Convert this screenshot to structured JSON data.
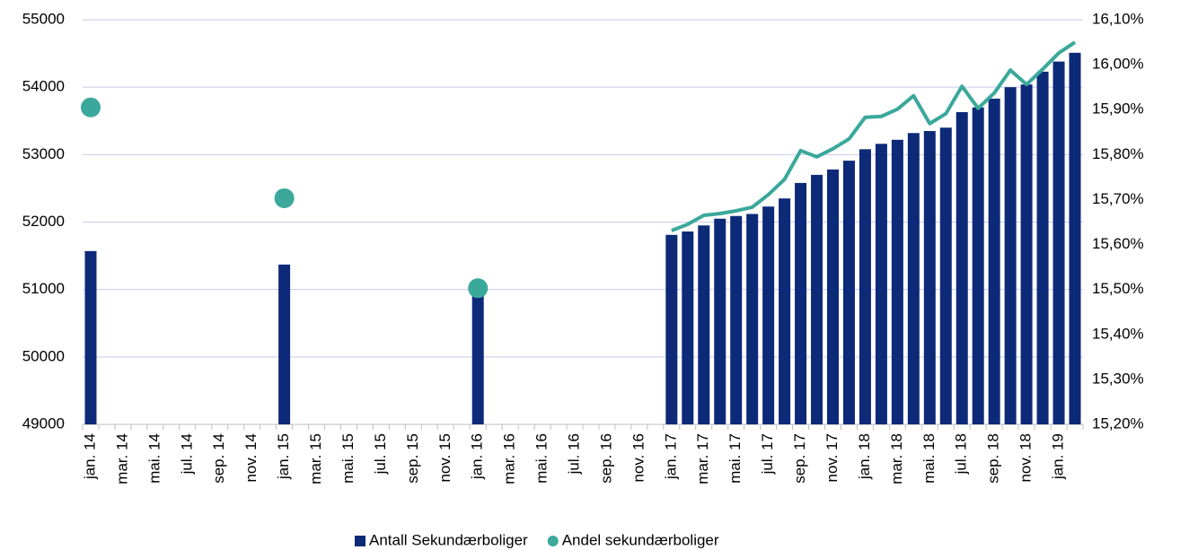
{
  "chart_data": {
    "type": "bar-line",
    "categories": [
      "jan. 14",
      null,
      "mar. 14",
      null,
      "mai. 14",
      null,
      "jul. 14",
      null,
      "sep. 14",
      null,
      "nov. 14",
      null,
      "jan. 15",
      null,
      "mar. 15",
      null,
      "mai. 15",
      null,
      "jul. 15",
      null,
      "sep. 15",
      null,
      "nov. 15",
      null,
      "jan. 16",
      null,
      "mar. 16",
      null,
      "mai. 16",
      null,
      "jul. 16",
      null,
      "sep. 16",
      null,
      "nov. 16",
      null,
      "jan. 17",
      null,
      "mar. 17",
      null,
      "mai. 17",
      null,
      "jul. 17",
      null,
      "sep. 17",
      null,
      "nov. 17",
      null,
      "jan. 18",
      null,
      "mar. 18",
      null,
      "mai. 18",
      null,
      "jul. 18",
      null,
      "sep. 18",
      null,
      "nov. 18",
      null,
      "jan. 19",
      null
    ],
    "series": [
      {
        "name": "Antall Sekundærboliger",
        "type": "bar",
        "color": "#0d2a78",
        "values": [
          51570,
          null,
          null,
          null,
          null,
          null,
          null,
          null,
          null,
          null,
          null,
          null,
          51370,
          null,
          null,
          null,
          null,
          null,
          null,
          null,
          null,
          null,
          null,
          null,
          50950,
          null,
          null,
          null,
          null,
          null,
          null,
          null,
          null,
          null,
          null,
          null,
          51810,
          51860,
          51950,
          52050,
          52090,
          52120,
          52230,
          52350,
          52580,
          52700,
          52780,
          52910,
          53080,
          53160,
          53220,
          53320,
          53350,
          53400,
          53630,
          53700,
          53830,
          54000,
          54040,
          54230,
          54380,
          54510
        ]
      },
      {
        "name": "Andel sekundærboliger",
        "type": "line",
        "axis": "y2",
        "color": "#3aa89b",
        "values": [
          15.905,
          null,
          null,
          null,
          null,
          null,
          null,
          null,
          null,
          null,
          null,
          null,
          15.703,
          null,
          null,
          null,
          null,
          null,
          null,
          null,
          null,
          null,
          null,
          null,
          15.503,
          null,
          null,
          null,
          null,
          null,
          null,
          null,
          null,
          null,
          null,
          null,
          15.631,
          15.645,
          15.665,
          15.669,
          15.675,
          15.683,
          15.711,
          15.745,
          15.809,
          15.795,
          15.813,
          15.835,
          15.883,
          15.885,
          15.901,
          15.931,
          15.869,
          15.891,
          15.952,
          15.903,
          15.937,
          15.988,
          15.956,
          15.99,
          16.026,
          16.05
        ]
      }
    ],
    "ylim": [
      49000,
      55000
    ],
    "yticks": [
      49000,
      50000,
      51000,
      52000,
      53000,
      54000,
      55000
    ],
    "y2lim": [
      15.2,
      16.1
    ],
    "y2ticks": [
      {
        "value": 15.2,
        "label": "15,20%"
      },
      {
        "value": 15.3,
        "label": "15,30%"
      },
      {
        "value": 15.4,
        "label": "15,40%"
      },
      {
        "value": 15.5,
        "label": "15,50%"
      },
      {
        "value": 15.6,
        "label": "15,60%"
      },
      {
        "value": 15.7,
        "label": "15,70%"
      },
      {
        "value": 15.8,
        "label": "15,80%"
      },
      {
        "value": 15.9,
        "label": "15,90%"
      },
      {
        "value": 16.0,
        "label": "16,00%"
      },
      {
        "value": 16.1,
        "label": "16,10%"
      }
    ],
    "grid": true,
    "legend": "bottom"
  }
}
